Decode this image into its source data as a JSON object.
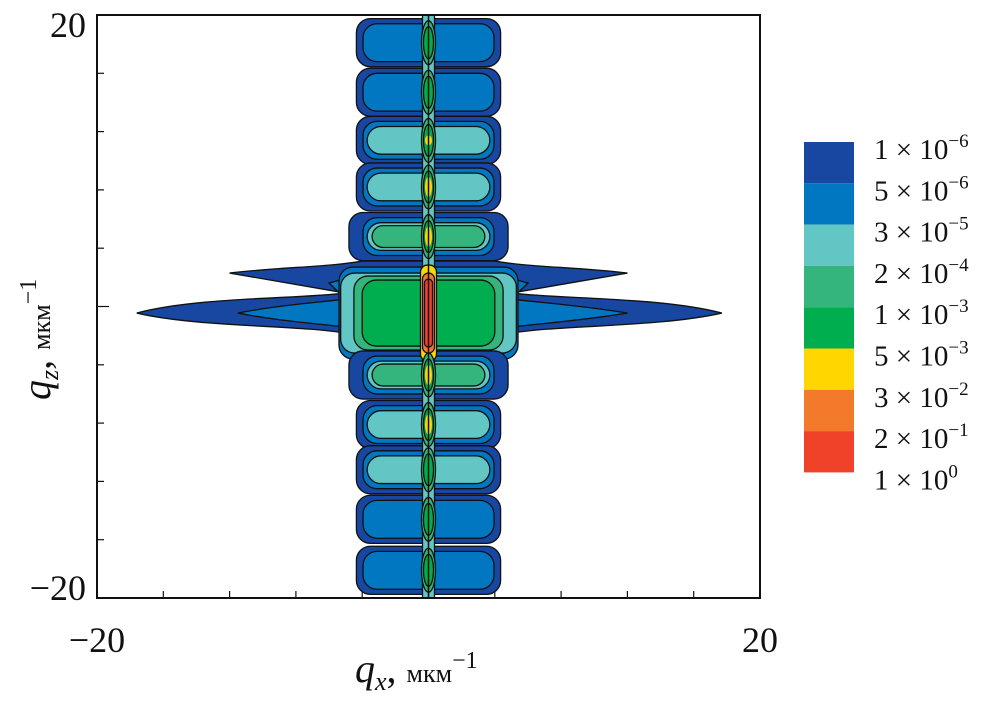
{
  "chart_data": {
    "type": "heatmap",
    "subtype": "filled-contour",
    "xlabel": {
      "symbol": "q",
      "sub": "x",
      "unit": "мкм",
      "exp": "−1"
    },
    "ylabel": {
      "symbol": "q",
      "sub": "z",
      "unit": "мкм",
      "exp": "−1"
    },
    "xlim": [
      -20,
      20
    ],
    "ylim": [
      -20,
      20
    ],
    "x_tick_labels": [
      "−20",
      "20"
    ],
    "y_tick_labels": [
      "20",
      "−20"
    ],
    "minor_tick_step": 4,
    "legend": {
      "placement": "right",
      "levels": [
        {
          "mant": "1 × 10",
          "exp": "−6",
          "color": "#1747a0"
        },
        {
          "mant": "5 × 10",
          "exp": "−6",
          "color": "#0077c0"
        },
        {
          "mant": "3 × 10",
          "exp": "−5",
          "color": "#62c6c4"
        },
        {
          "mant": "2 × 10",
          "exp": "−4",
          "color": "#35b57e"
        },
        {
          "mant": "1 × 10",
          "exp": "−3",
          "color": "#00ad4f"
        },
        {
          "mant": "5 × 10",
          "exp": "−3",
          "color": "#ffd600"
        },
        {
          "mant": "3 × 10",
          "exp": "−2",
          "color": "#f47a2b"
        },
        {
          "mant": "2 × 10",
          "exp": "−1",
          "color": "#ef4229"
        },
        {
          "mant": "1 × 10",
          "exp": "0",
          "color": null
        }
      ]
    },
    "lobes": [
      {
        "qz": 18.1,
        "max_level": 1,
        "axis_level": 4
      },
      {
        "qz": 14.7,
        "max_level": 1,
        "axis_level": 4
      },
      {
        "qz": 11.4,
        "max_level": 2,
        "axis_level": 5
      },
      {
        "qz": 8.2,
        "max_level": 2,
        "axis_level": 5
      },
      {
        "qz": 4.8,
        "max_level": 3,
        "axis_level": 5
      },
      {
        "qz": -0.45,
        "max_level": 4,
        "axis_level": 7,
        "central": true
      },
      {
        "qz": -4.7,
        "max_level": 3,
        "axis_level": 5
      },
      {
        "qz": -8.1,
        "max_level": 2,
        "axis_level": 5
      },
      {
        "qz": -11.2,
        "max_level": 2,
        "axis_level": 4
      },
      {
        "qz": -14.6,
        "max_level": 1,
        "axis_level": 4
      },
      {
        "qz": -18.1,
        "max_level": 1,
        "axis_level": 4
      }
    ]
  }
}
